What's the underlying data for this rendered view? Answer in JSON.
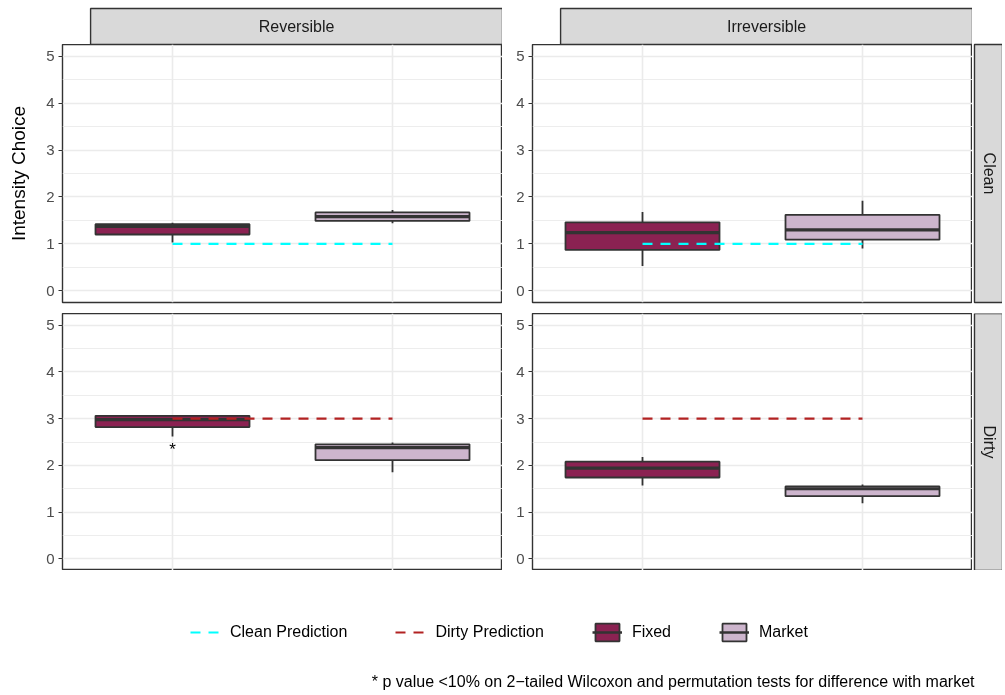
{
  "chart_data": [
    {
      "type": "box",
      "title": "Reversible",
      "ylabel": "Intensity Choice",
      "categories": [
        null,
        null
      ],
      "ylim": [
        -0.25,
        5.25
      ],
      "yticks": [
        0,
        1,
        2,
        3,
        4,
        5
      ],
      "grid": true,
      "tick_labels": "y",
      "legend": "bottom",
      "series": [
        {
          "name": "Fixed",
          "color": "#8b2252",
          "boxes": [
            {
              "low": 1.03,
              "q1": 1.2,
              "median": 1.37,
              "q3": 1.42,
              "high": 1.45
            },
            null
          ]
        },
        {
          "name": "Market",
          "color": "#cdb5cd",
          "boxes": [
            null,
            {
              "low": 1.44,
              "q1": 1.49,
              "median": 1.58,
              "q3": 1.67,
              "high": 1.72
            }
          ]
        },
        {
          "name": "Clean Prediction",
          "type": "line",
          "color": "#00ffff",
          "line_style": "dashed",
          "values": [
            1,
            1
          ]
        }
      ]
    },
    {
      "type": "box",
      "title": "Irreversible",
      "y2label": "Clean",
      "categories": [
        null,
        null
      ],
      "ylim": [
        -0.25,
        5.25
      ],
      "yticks": [
        0,
        1,
        2,
        3,
        4,
        5
      ],
      "grid": true,
      "tick_labels": "y",
      "legend": "bottom",
      "series": [
        {
          "name": "Fixed",
          "color": "#8b2252",
          "boxes": [
            {
              "low": 0.53,
              "q1": 0.87,
              "median": 1.24,
              "q3": 1.46,
              "high": 1.68
            },
            null
          ]
        },
        {
          "name": "Market",
          "color": "#cdb5cd",
          "boxes": [
            null,
            {
              "low": 0.9,
              "q1": 1.09,
              "median": 1.3,
              "q3": 1.62,
              "high": 1.92
            }
          ]
        },
        {
          "name": "Clean Prediction",
          "type": "line",
          "color": "#00ffff",
          "line_style": "dashed",
          "values": [
            1,
            1
          ]
        }
      ]
    },
    {
      "type": "box",
      "categories": [
        null,
        null
      ],
      "ylim": [
        -0.25,
        5.25
      ],
      "yticks": [
        0,
        1,
        2,
        3,
        4,
        5
      ],
      "grid": true,
      "tick_labels": "y",
      "legend": "bottom",
      "annotations": [
        "*"
      ],
      "series": [
        {
          "name": "Fixed",
          "color": "#8b2252",
          "boxes": [
            {
              "low": 2.62,
              "q1": 2.82,
              "median": 2.98,
              "q3": 3.06,
              "high": 3.06
            },
            null
          ]
        },
        {
          "name": "Market",
          "color": "#cdb5cd",
          "boxes": [
            null,
            {
              "low": 1.85,
              "q1": 2.11,
              "median": 2.38,
              "q3": 2.45,
              "high": 2.49
            }
          ]
        },
        {
          "name": "Dirty Prediction",
          "type": "line",
          "color": "#b22222",
          "line_style": "dashed",
          "values": [
            3,
            3
          ]
        }
      ]
    },
    {
      "type": "box",
      "y2label": "Dirty",
      "categories": [
        null,
        null
      ],
      "ylim": [
        -0.25,
        5.25
      ],
      "yticks": [
        0,
        1,
        2,
        3,
        4,
        5
      ],
      "grid": true,
      "tick_labels": "y",
      "legend": "bottom",
      "annotations": [
        "* p value <10% on 2−tailed Wilcoxon and permutation tests for difference with market"
      ],
      "series": [
        {
          "name": "Fixed",
          "color": "#8b2252",
          "boxes": [
            {
              "low": 1.57,
              "q1": 1.74,
              "median": 1.94,
              "q3": 2.08,
              "high": 2.18
            },
            null
          ]
        },
        {
          "name": "Market",
          "color": "#cdb5cd",
          "boxes": [
            null,
            {
              "low": 1.19,
              "q1": 1.34,
              "median": 1.5,
              "q3": 1.55,
              "high": 1.59
            }
          ]
        },
        {
          "name": "Dirty Prediction",
          "type": "line",
          "color": "#b22222",
          "line_style": "dashed",
          "values": [
            3,
            3
          ]
        }
      ]
    }
  ]
}
